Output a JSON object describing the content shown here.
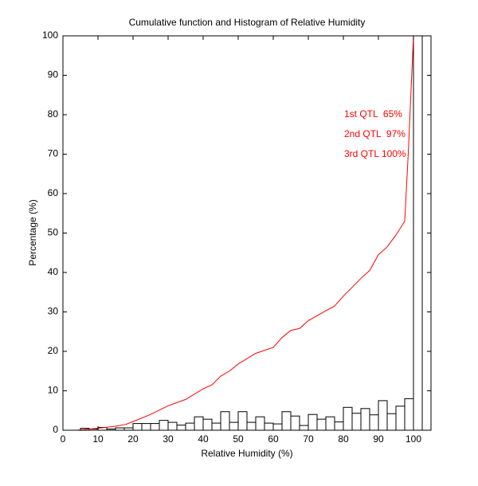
{
  "chart_data": {
    "type": "line",
    "title": "Cumulative function and Histogram of Relative Humidity",
    "xlabel": "Relative Humidity (%)",
    "ylabel": "Percentage (%)",
    "xlim": [
      0,
      105
    ],
    "ylim": [
      0,
      100
    ],
    "xticks": [
      0,
      10,
      20,
      30,
      40,
      50,
      60,
      70,
      80,
      90,
      100
    ],
    "yticks": [
      0,
      10,
      20,
      30,
      40,
      50,
      60,
      70,
      80,
      90,
      100
    ],
    "annotations": [
      "1st QTL  65%",
      "2nd QTL  97%",
      "3rd QTL 100%"
    ],
    "annotation_color": "#ff0000",
    "series": [
      {
        "color": "#ff0000",
        "x": [
          4,
          10,
          15,
          18,
          20,
          25,
          30,
          35,
          40,
          42.5,
          45,
          47.5,
          50,
          55,
          60,
          62.5,
          65,
          67.5,
          70,
          75,
          77.5,
          80,
          85,
          87.5,
          90,
          92.5,
          95,
          97.5,
          98.5,
          99.5,
          100
        ],
        "values": [
          0,
          0.5,
          1,
          1.5,
          2.2,
          4,
          6.2,
          7.8,
          10.5,
          11.5,
          13.7,
          15,
          16.8,
          19.5,
          21,
          23.5,
          25.3,
          25.8,
          27.8,
          30.3,
          31.5,
          34,
          38.5,
          40.5,
          44.5,
          46.5,
          49.5,
          53,
          70,
          90,
          100
        ]
      }
    ],
    "histogram": {
      "color": "#000000",
      "bins": [
        5,
        7.5,
        10,
        12.5,
        15,
        17.5,
        20,
        22.5,
        25,
        27.5,
        30,
        32.5,
        35,
        37.5,
        40,
        42.5,
        45,
        47.5,
        50,
        52.5,
        55,
        57.5,
        60,
        62.5,
        65,
        67.5,
        70,
        72.5,
        75,
        77.5,
        80,
        82.5,
        85,
        87.5,
        90,
        92.5,
        95,
        97.5,
        100,
        102.5
      ],
      "counts": [
        0.5,
        0.3,
        0.7,
        0.3,
        0.6,
        0.6,
        1.7,
        1.7,
        1.7,
        2.5,
        2.0,
        1.3,
        1.8,
        3.4,
        2.8,
        1.8,
        4.7,
        2.0,
        4.7,
        2.0,
        3.4,
        1.8,
        1.6,
        4.7,
        3.6,
        1.2,
        4.0,
        2.8,
        3.4,
        2.1,
        5.8,
        4.3,
        5.5,
        3.9,
        7.5,
        4.2,
        6.1,
        8.0,
        100
      ]
    }
  }
}
